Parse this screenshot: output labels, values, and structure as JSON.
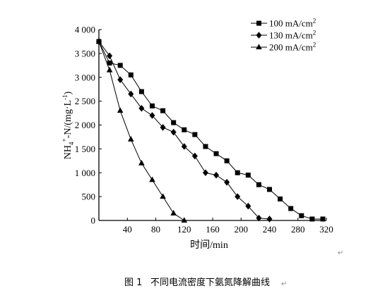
{
  "caption": {
    "label": "图 1",
    "text": "不同电流密度下氨氮降解曲线"
  },
  "return_mark": "↵",
  "chart_data": {
    "type": "line",
    "xlabel": "时间/min",
    "ylabel": "NH4+-N/(mg·L-1)",
    "xlim": [
      0,
      320
    ],
    "ylim": [
      0,
      4000
    ],
    "x_ticks": [
      40,
      80,
      120,
      160,
      200,
      240,
      280,
      320
    ],
    "x_tick_labels": [
      "40",
      "80",
      "120",
      "160",
      "200",
      "240",
      "280",
      "320"
    ],
    "y_ticks": [
      0,
      500,
      1000,
      1500,
      2000,
      2500,
      3000,
      3500,
      4000
    ],
    "y_tick_labels": [
      "0",
      "500",
      "1 000",
      "1 500",
      "2 000",
      "2 500",
      "3 000",
      "3 500",
      "4 000"
    ],
    "grid": false,
    "legend_position": "top-right",
    "series": [
      {
        "name": "100 mA/cm2",
        "marker": "square",
        "x": [
          0,
          15,
          30,
          45,
          60,
          75,
          90,
          105,
          120,
          135,
          150,
          165,
          180,
          195,
          210,
          225,
          240,
          255,
          270,
          285,
          300,
          315
        ],
        "y": [
          3750,
          3300,
          3250,
          3050,
          2700,
          2400,
          2300,
          2050,
          1900,
          1800,
          1550,
          1400,
          1250,
          1000,
          950,
          750,
          650,
          450,
          250,
          100,
          30,
          30
        ]
      },
      {
        "name": "130 mA/cm2",
        "marker": "diamond",
        "x": [
          0,
          15,
          30,
          45,
          60,
          75,
          90,
          105,
          120,
          135,
          150,
          165,
          180,
          195,
          210,
          225,
          240
        ],
        "y": [
          3750,
          3450,
          2950,
          2650,
          2350,
          2200,
          1950,
          1850,
          1550,
          1350,
          1000,
          950,
          800,
          500,
          300,
          50,
          30
        ]
      },
      {
        "name": "200 mA/cm2",
        "marker": "triangle",
        "x": [
          0,
          15,
          30,
          45,
          60,
          75,
          90,
          105,
          120
        ],
        "y": [
          3750,
          3150,
          2300,
          1700,
          1200,
          850,
          500,
          150,
          0
        ]
      }
    ]
  }
}
